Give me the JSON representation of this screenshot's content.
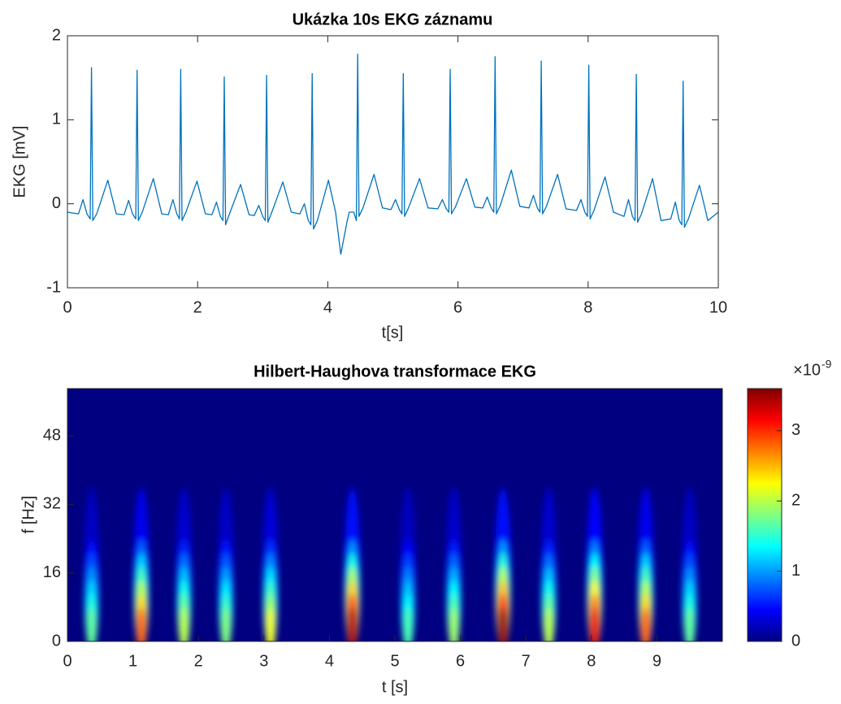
{
  "chart_data": [
    {
      "type": "line",
      "title": "Ukázka 10s EKG záznamu",
      "xlabel": "t[s]",
      "ylabel": "EKG [mV]",
      "color": "#0072bd",
      "xlim": [
        0,
        10
      ],
      "ylim": [
        -1,
        2
      ],
      "xticks": [
        0,
        2,
        4,
        6,
        8,
        10
      ],
      "yticks": [
        -1,
        0,
        1,
        2
      ],
      "x": [
        0,
        0.17,
        0.24,
        0.3,
        0.35,
        0.37,
        0.39,
        0.45,
        0.62,
        0.75,
        0.87,
        0.94,
        1.0,
        1.05,
        1.07,
        1.09,
        1.15,
        1.32,
        1.45,
        1.55,
        1.62,
        1.68,
        1.72,
        1.74,
        1.76,
        1.82,
        1.99,
        2.12,
        2.22,
        2.29,
        2.35,
        2.39,
        2.41,
        2.43,
        2.49,
        2.66,
        2.79,
        2.87,
        2.94,
        3.0,
        3.04,
        3.06,
        3.08,
        3.14,
        3.31,
        3.44,
        3.57,
        3.64,
        3.7,
        3.74,
        3.76,
        3.78,
        3.84,
        4.01,
        4.12,
        4.2,
        4.3,
        4.33,
        4.4,
        4.44,
        4.46,
        4.48,
        4.54,
        4.71,
        4.84,
        4.97,
        5.04,
        5.1,
        5.14,
        5.16,
        5.18,
        5.24,
        5.41,
        5.54,
        5.69,
        5.76,
        5.82,
        5.86,
        5.88,
        5.9,
        5.96,
        6.13,
        6.26,
        6.38,
        6.45,
        6.51,
        6.55,
        6.57,
        6.59,
        6.65,
        6.82,
        6.95,
        7.09,
        7.16,
        7.22,
        7.26,
        7.28,
        7.3,
        7.36,
        7.53,
        7.66,
        7.82,
        7.89,
        7.95,
        7.99,
        8.01,
        8.03,
        8.09,
        8.26,
        8.39,
        8.55,
        8.62,
        8.68,
        8.72,
        8.74,
        8.76,
        8.82,
        8.99,
        9.12,
        9.27,
        9.34,
        9.4,
        9.44,
        9.46,
        9.48,
        9.54,
        9.71,
        9.84,
        10
      ],
      "values": [
        -0.1,
        -0.12,
        0.05,
        -0.12,
        -0.18,
        1.62,
        -0.2,
        -0.12,
        0.28,
        -0.12,
        -0.13,
        0.04,
        -0.12,
        -0.18,
        1.59,
        -0.2,
        -0.1,
        0.3,
        -0.12,
        -0.13,
        0.05,
        -0.12,
        -0.18,
        1.6,
        -0.2,
        -0.1,
        0.27,
        -0.12,
        -0.13,
        0.02,
        -0.15,
        -0.2,
        1.51,
        -0.25,
        -0.12,
        0.23,
        -0.13,
        -0.14,
        -0.02,
        -0.15,
        -0.2,
        1.53,
        -0.22,
        -0.1,
        0.26,
        -0.1,
        -0.12,
        0.0,
        -0.2,
        -0.25,
        1.55,
        -0.3,
        -0.2,
        0.28,
        -0.1,
        -0.6,
        -0.2,
        -0.1,
        -0.1,
        -0.2,
        1.78,
        -0.15,
        -0.05,
        0.35,
        -0.05,
        -0.07,
        0.05,
        -0.07,
        -0.12,
        1.55,
        -0.15,
        -0.05,
        0.3,
        -0.05,
        -0.06,
        0.05,
        -0.06,
        -0.1,
        1.6,
        -0.12,
        -0.04,
        0.3,
        -0.04,
        -0.05,
        0.08,
        -0.05,
        -0.1,
        1.75,
        -0.12,
        -0.02,
        0.4,
        -0.03,
        -0.05,
        0.1,
        -0.05,
        -0.1,
        1.7,
        -0.12,
        -0.03,
        0.35,
        -0.06,
        -0.08,
        0.05,
        -0.1,
        -0.15,
        1.65,
        -0.18,
        -0.08,
        0.32,
        -0.1,
        -0.15,
        0.05,
        -0.15,
        -0.2,
        1.54,
        -0.22,
        -0.12,
        0.3,
        -0.2,
        -0.18,
        0.02,
        -0.2,
        -0.25,
        1.46,
        -0.28,
        -0.18,
        0.22,
        -0.2,
        -0.1
      ]
    },
    {
      "type": "heatmap",
      "title": "Hilbert-Haughova transformace EKG",
      "xlabel": "t [s]",
      "ylabel": "f [Hz]",
      "colormap": "jet",
      "xlim": [
        0,
        10
      ],
      "ylim": [
        0,
        59
      ],
      "xticks": [
        0,
        1,
        2,
        3,
        4,
        5,
        6,
        7,
        8,
        9
      ],
      "yticks": [
        0,
        16,
        32,
        48
      ],
      "clim": [
        0,
        3.6
      ],
      "cticks": [
        0,
        1,
        2,
        3
      ],
      "colorbar_scale": {
        "base": "×10",
        "exponent": "-9"
      },
      "x": [
        0.37,
        1.13,
        1.78,
        2.42,
        3.1,
        4.35,
        5.2,
        5.9,
        6.65,
        7.35,
        8.05,
        8.83,
        9.5
      ],
      "values": [
        1.7,
        2.8,
        2.0,
        1.8,
        2.2,
        3.4,
        1.6,
        1.9,
        3.5,
        2.0,
        3.2,
        2.8,
        1.7
      ]
    }
  ]
}
